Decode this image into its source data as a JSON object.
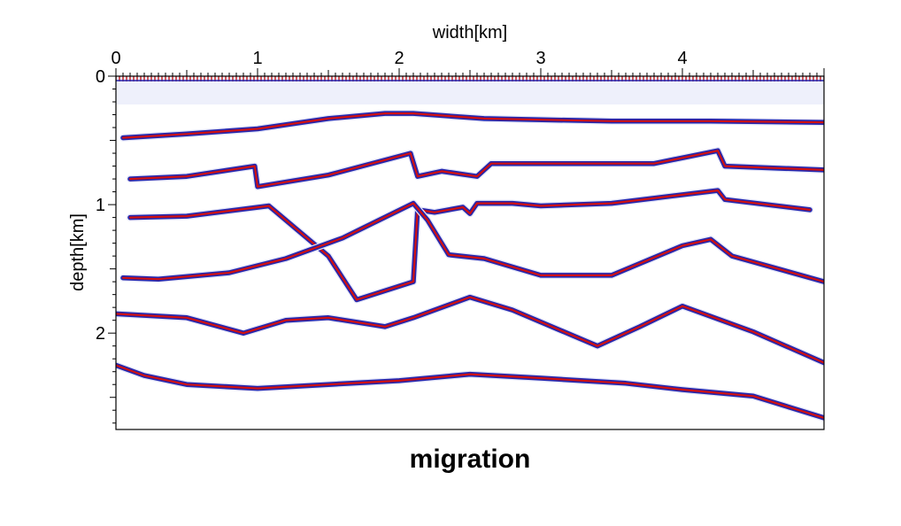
{
  "chart_data": {
    "type": "line",
    "title": "migration",
    "xlabel": "width[km]",
    "ylabel": "depth[km]",
    "x_axis_position": "top",
    "xlim": [
      0,
      5.0
    ],
    "ylim": [
      0,
      2.75
    ],
    "y_inverted": true,
    "x_ticks": [
      0,
      1,
      2,
      3,
      4
    ],
    "x_tick_labels": [
      "0",
      "1",
      "2",
      "3",
      "4"
    ],
    "y_ticks": [
      0,
      1,
      2
    ],
    "y_tick_labels": [
      "0",
      "1",
      "2"
    ],
    "grid": false,
    "colors": {
      "positive": "#d01010",
      "negative": "#1a1aa8",
      "background": "#ffffff"
    },
    "series": [
      {
        "x": [
          0.05,
          0.5,
          1.0,
          1.5,
          1.9,
          2.1,
          2.6,
          3.5,
          4.2,
          5.0
        ],
        "y": [
          0.48,
          0.45,
          0.41,
          0.33,
          0.29,
          0.29,
          0.33,
          0.35,
          0.35,
          0.36
        ]
      },
      {
        "x": [
          0.1,
          0.5,
          0.98,
          1.0,
          1.5,
          2.08,
          2.13,
          2.3,
          2.55,
          2.65,
          3.5,
          3.8,
          4.25,
          4.3,
          5.0
        ],
        "y": [
          0.8,
          0.78,
          0.7,
          0.86,
          0.77,
          0.6,
          0.78,
          0.74,
          0.78,
          0.68,
          0.68,
          0.68,
          0.58,
          0.7,
          0.73
        ]
      },
      {
        "x": [
          0.1,
          0.5,
          1.08,
          1.5,
          1.7,
          2.1,
          2.13,
          2.25,
          2.45,
          2.5,
          2.55,
          2.8,
          3.0,
          3.5,
          4.25,
          4.3,
          4.9
        ],
        "y": [
          1.1,
          1.09,
          1.01,
          1.4,
          1.74,
          1.6,
          1.04,
          1.06,
          1.02,
          1.07,
          0.99,
          0.99,
          1.01,
          0.99,
          0.89,
          0.96,
          1.04
        ]
      },
      {
        "x": [
          0.05,
          0.3,
          0.8,
          1.2,
          1.6,
          2.1,
          2.2,
          2.35,
          2.6,
          3.0,
          3.5,
          4.0,
          4.2,
          4.35,
          5.0
        ],
        "y": [
          1.57,
          1.58,
          1.53,
          1.42,
          1.26,
          0.99,
          1.12,
          1.39,
          1.42,
          1.55,
          1.55,
          1.32,
          1.27,
          1.4,
          1.6
        ]
      },
      {
        "x": [
          0,
          0.5,
          0.9,
          1.2,
          1.5,
          1.9,
          2.1,
          2.5,
          2.8,
          3.4,
          3.7,
          4.0,
          4.5,
          5.0
        ],
        "y": [
          1.85,
          1.88,
          2.0,
          1.9,
          1.88,
          1.95,
          1.88,
          1.72,
          1.82,
          2.1,
          1.95,
          1.79,
          1.99,
          2.23
        ]
      },
      {
        "x": [
          0,
          0.2,
          0.5,
          1.0,
          1.5,
          2.0,
          2.5,
          3.0,
          3.6,
          4.0,
          4.5,
          5.0
        ],
        "y": [
          2.25,
          2.33,
          2.4,
          2.43,
          2.4,
          2.37,
          2.32,
          2.35,
          2.39,
          2.44,
          2.49,
          2.66
        ]
      }
    ]
  }
}
